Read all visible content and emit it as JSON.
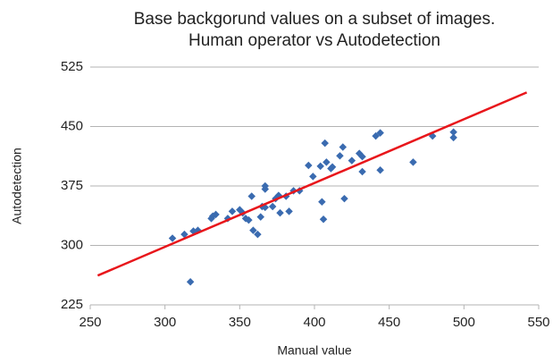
{
  "chart_data": {
    "type": "scatter",
    "title": [
      "Base backgorund values on a subset of images.",
      "Human operator vs Autodetection"
    ],
    "x_label": "Manual value",
    "y_label": "Autodetection",
    "xlim": [
      250,
      550
    ],
    "xticks": [
      250,
      300,
      350,
      400,
      450,
      500,
      550
    ],
    "ylim": [
      225,
      525
    ],
    "yticks": [
      225,
      300,
      375,
      450,
      525
    ],
    "grid": true,
    "series": [
      {
        "color": "#3a6bb0",
        "x": [
          305,
          313,
          317,
          319,
          322,
          331,
          332,
          334,
          342,
          345,
          350,
          352,
          354,
          356,
          358,
          359,
          362,
          364,
          365,
          367,
          367,
          367,
          372,
          374,
          376,
          377,
          381,
          383,
          386,
          390,
          396,
          399,
          404,
          405,
          406,
          407,
          408,
          411,
          412,
          417,
          419,
          420,
          425,
          430,
          432,
          432,
          441,
          444,
          444,
          466,
          479,
          493,
          493
        ],
        "values": [
          309,
          314,
          254,
          318,
          319,
          334,
          337,
          339,
          334,
          343,
          345,
          341,
          334,
          332,
          362,
          319,
          314,
          336,
          349,
          371,
          375,
          348,
          349,
          359,
          363,
          341,
          362,
          343,
          369,
          369,
          401,
          387,
          400,
          355,
          333,
          429,
          405,
          397,
          399,
          413,
          424,
          359,
          407,
          416,
          412,
          393,
          438,
          395,
          442,
          405,
          438,
          443,
          436
        ]
      }
    ],
    "trendline": {
      "color": "#e8161b",
      "x": [
        255,
        542
      ],
      "values": [
        262,
        493
      ]
    }
  }
}
